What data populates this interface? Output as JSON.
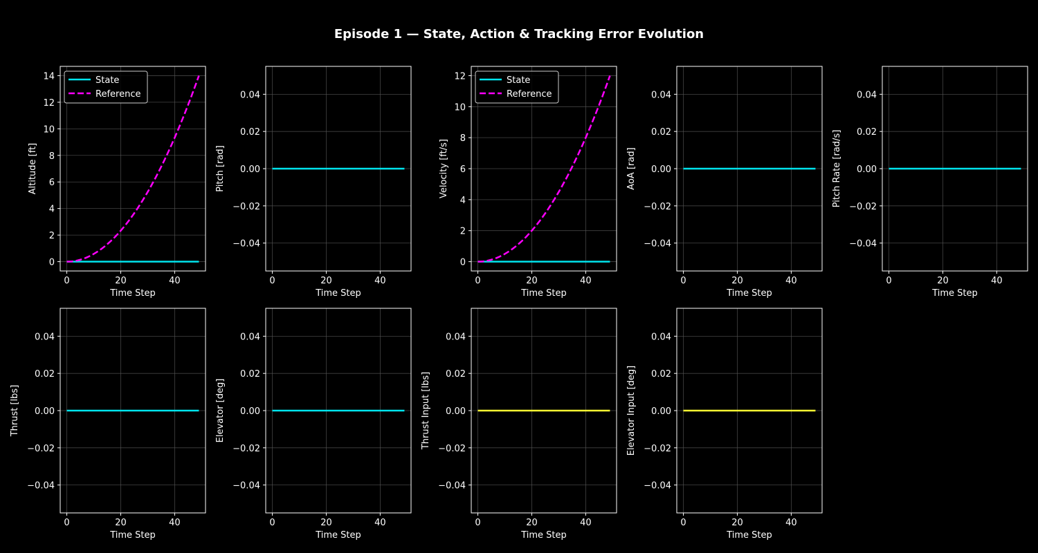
{
  "figure_title": "Episode 1 — State, Action & Tracking Error Evolution",
  "colors": {
    "background": "#000000",
    "state": "#00e5ee",
    "reference": "#ff00ff",
    "action": "#ffff33",
    "axes": "#ffffff",
    "grid": "#555555"
  },
  "chart_data": [
    {
      "type": "line",
      "title": "",
      "xlabel": "Time Step",
      "ylabel": "Altitude [ft]",
      "xlim": [
        -2.45,
        51.45
      ],
      "ylim": [
        -0.7,
        14.7
      ],
      "xticks": [
        0,
        20,
        40
      ],
      "yticks": [
        0,
        2,
        4,
        6,
        8,
        10,
        12,
        14
      ],
      "yticklabels": [
        "0",
        "2",
        "4",
        "6",
        "8",
        "10",
        "12",
        "14"
      ],
      "grid": true,
      "legend": "upper-left",
      "series": [
        {
          "name": "State",
          "role": "state",
          "style": "solid",
          "x_range": [
            0,
            49
          ],
          "formula": "constant",
          "value": 0
        },
        {
          "name": "Reference",
          "role": "reference",
          "style": "dashed",
          "x_range": [
            0,
            49
          ],
          "formula": "quadratic",
          "end_value": 14
        }
      ]
    },
    {
      "type": "line",
      "title": "",
      "xlabel": "Time Step",
      "ylabel": "Pitch [rad]",
      "xlim": [
        -2.45,
        51.45
      ],
      "ylim": [
        -0.055,
        0.055
      ],
      "xticks": [
        0,
        20,
        40
      ],
      "yticks": [
        -0.04,
        -0.02,
        0,
        0.02,
        0.04
      ],
      "yticklabels": [
        "−0.04",
        "−0.02",
        "0.00",
        "0.02",
        "0.04"
      ],
      "grid": true,
      "legend": "none",
      "series": [
        {
          "name": "State",
          "role": "state",
          "style": "solid",
          "x_range": [
            0,
            49
          ],
          "formula": "constant",
          "value": 0
        }
      ]
    },
    {
      "type": "line",
      "title": "",
      "xlabel": "Time Step",
      "ylabel": "Velocity [ft/s]",
      "xlim": [
        -2.45,
        51.45
      ],
      "ylim": [
        -0.6,
        12.6
      ],
      "xticks": [
        0,
        20,
        40
      ],
      "yticks": [
        0,
        2,
        4,
        6,
        8,
        10,
        12
      ],
      "yticklabels": [
        "0",
        "2",
        "4",
        "6",
        "8",
        "10",
        "12"
      ],
      "grid": true,
      "legend": "upper-left",
      "series": [
        {
          "name": "State",
          "role": "state",
          "style": "solid",
          "x_range": [
            0,
            49
          ],
          "formula": "constant",
          "value": 0
        },
        {
          "name": "Reference",
          "role": "reference",
          "style": "dashed",
          "x_range": [
            0,
            49
          ],
          "formula": "quadratic",
          "end_value": 12
        }
      ]
    },
    {
      "type": "line",
      "title": "",
      "xlabel": "Time Step",
      "ylabel": "AoA [rad]",
      "xlim": [
        -2.45,
        51.45
      ],
      "ylim": [
        -0.055,
        0.055
      ],
      "xticks": [
        0,
        20,
        40
      ],
      "yticks": [
        -0.04,
        -0.02,
        0,
        0.02,
        0.04
      ],
      "yticklabels": [
        "−0.04",
        "−0.02",
        "0.00",
        "0.02",
        "0.04"
      ],
      "grid": true,
      "legend": "none",
      "series": [
        {
          "name": "State",
          "role": "state",
          "style": "solid",
          "x_range": [
            0,
            49
          ],
          "formula": "constant",
          "value": 0
        }
      ]
    },
    {
      "type": "line",
      "title": "",
      "xlabel": "Time Step",
      "ylabel": "Pitch Rate [rad/s]",
      "xlim": [
        -2.45,
        51.45
      ],
      "ylim": [
        -0.055,
        0.055
      ],
      "xticks": [
        0,
        20,
        40
      ],
      "yticks": [
        -0.04,
        -0.02,
        0,
        0.02,
        0.04
      ],
      "yticklabels": [
        "−0.04",
        "−0.02",
        "0.00",
        "0.02",
        "0.04"
      ],
      "grid": true,
      "legend": "none",
      "series": [
        {
          "name": "State",
          "role": "state",
          "style": "solid",
          "x_range": [
            0,
            49
          ],
          "formula": "constant",
          "value": 0
        }
      ]
    },
    {
      "type": "line",
      "title": "",
      "xlabel": "Time Step",
      "ylabel": "Thrust [lbs]",
      "xlim": [
        -2.45,
        51.45
      ],
      "ylim": [
        -0.055,
        0.055
      ],
      "xticks": [
        0,
        20,
        40
      ],
      "yticks": [
        -0.04,
        -0.02,
        0,
        0.02,
        0.04
      ],
      "yticklabels": [
        "−0.04",
        "−0.02",
        "0.00",
        "0.02",
        "0.04"
      ],
      "grid": true,
      "legend": "none",
      "series": [
        {
          "name": "State",
          "role": "state",
          "style": "solid",
          "x_range": [
            0,
            49
          ],
          "formula": "constant",
          "value": 0
        }
      ]
    },
    {
      "type": "line",
      "title": "",
      "xlabel": "Time Step",
      "ylabel": "Elevator [deg]",
      "xlim": [
        -2.45,
        51.45
      ],
      "ylim": [
        -0.055,
        0.055
      ],
      "xticks": [
        0,
        20,
        40
      ],
      "yticks": [
        -0.04,
        -0.02,
        0,
        0.02,
        0.04
      ],
      "yticklabels": [
        "−0.04",
        "−0.02",
        "0.00",
        "0.02",
        "0.04"
      ],
      "grid": true,
      "legend": "none",
      "series": [
        {
          "name": "State",
          "role": "state",
          "style": "solid",
          "x_range": [
            0,
            49
          ],
          "formula": "constant",
          "value": 0
        }
      ]
    },
    {
      "type": "line",
      "title": "",
      "xlabel": "Time Step",
      "ylabel": "Thrust Input [lbs]",
      "xlim": [
        -2.45,
        51.45
      ],
      "ylim": [
        -0.055,
        0.055
      ],
      "xticks": [
        0,
        20,
        40
      ],
      "yticks": [
        -0.04,
        -0.02,
        0,
        0.02,
        0.04
      ],
      "yticklabels": [
        "−0.04",
        "−0.02",
        "0.00",
        "0.02",
        "0.04"
      ],
      "grid": true,
      "legend": "none",
      "series": [
        {
          "name": "Thrust Input",
          "role": "action",
          "style": "solid",
          "x_range": [
            0,
            49
          ],
          "formula": "constant",
          "value": 0
        }
      ]
    },
    {
      "type": "line",
      "title": "",
      "xlabel": "Time Step",
      "ylabel": "Elevator Input [deg]",
      "xlim": [
        -2.45,
        51.45
      ],
      "ylim": [
        -0.055,
        0.055
      ],
      "xticks": [
        0,
        20,
        40
      ],
      "yticks": [
        -0.04,
        -0.02,
        0,
        0.02,
        0.04
      ],
      "yticklabels": [
        "−0.04",
        "−0.02",
        "0.00",
        "0.02",
        "0.04"
      ],
      "grid": true,
      "legend": "none",
      "series": [
        {
          "name": "Elevator Input",
          "role": "action",
          "style": "solid",
          "x_range": [
            0,
            49
          ],
          "formula": "constant",
          "value": 0
        }
      ]
    }
  ]
}
